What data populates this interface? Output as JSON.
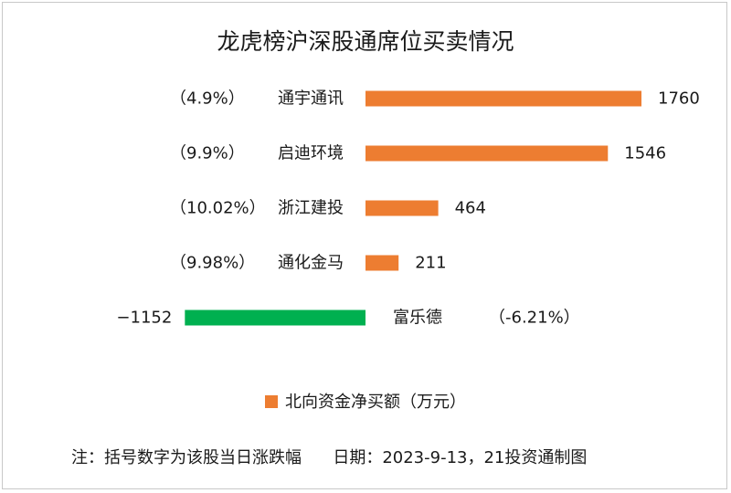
{
  "title": "龙虎榜沪深股通席位买卖情况",
  "colors": {
    "positive": "#ed7d31",
    "negative": "#00b050",
    "text": "#1a1a1a"
  },
  "legend_label": "北向资金净买额（万元）",
  "footnote": "注：括号数字为该股当日涨跌幅      日期：2023-9-13，21投资通制图",
  "chart_data": {
    "type": "bar",
    "orientation": "horizontal",
    "title": "龙虎榜沪深股通席位买卖情况",
    "categories": [
      "通宇通讯",
      "启迪环境",
      "浙江建投",
      "通化金马",
      "富乐德"
    ],
    "pct_labels": [
      "（4.9%）",
      "（9.9%）",
      "（10.02%）",
      "（9.98%）",
      "（-6.21%）"
    ],
    "series": [
      {
        "name": "北向资金净买额（万元）",
        "values": [
          1760,
          1546,
          464,
          211,
          -1152
        ]
      }
    ],
    "value_labels": [
      "1760",
      "1546",
      "464",
      "211",
      "−1152"
    ],
    "legend_position": "bottom",
    "grid": false
  }
}
